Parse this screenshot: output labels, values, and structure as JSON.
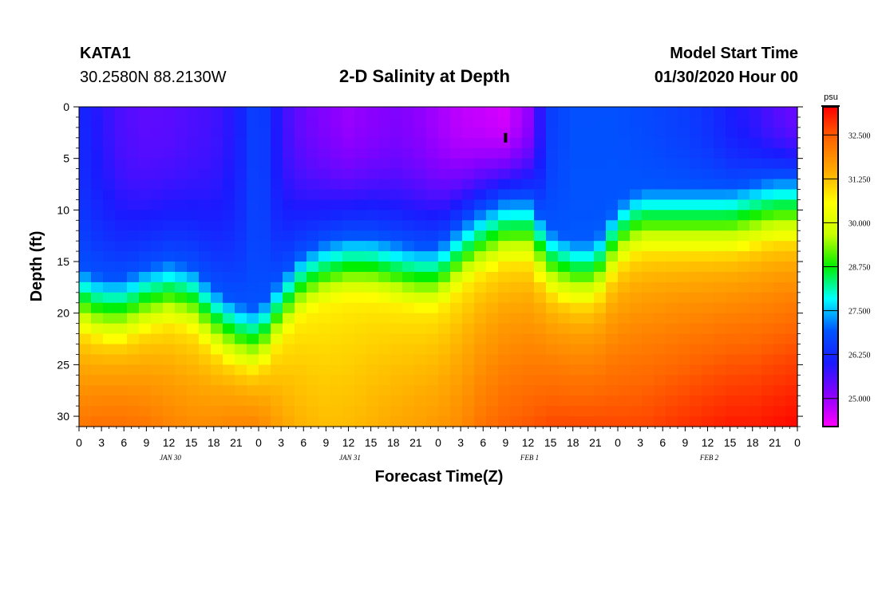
{
  "header": {
    "station_id": "KATA1",
    "station_coords": "30.2580N 88.2130W",
    "title": "2-D Salinity at Depth",
    "start_label": "Model Start Time",
    "start_value": "01/30/2020 Hour 00"
  },
  "chart_data": {
    "type": "heatmap",
    "title": "2-D Salinity at Depth",
    "xlabel": "Forecast Time(Z)",
    "ylabel": "Depth (ft)",
    "x_hours_range": [
      0,
      96
    ],
    "x_tick_step_hours": 3,
    "x_tick_labels": [
      "0",
      "3",
      "6",
      "9",
      "12",
      "15",
      "18",
      "21",
      "0",
      "3",
      "6",
      "9",
      "12",
      "15",
      "18",
      "21",
      "0",
      "3",
      "6",
      "9",
      "12",
      "15",
      "18",
      "21",
      "0",
      "3",
      "6",
      "9",
      "12",
      "15",
      "18",
      "21",
      "0"
    ],
    "day_labels": [
      {
        "text": "JAN 30",
        "hour": 12
      },
      {
        "text": "JAN 31",
        "hour": 36
      },
      {
        "text": "FEB 1",
        "hour": 60
      },
      {
        "text": "FEB 2",
        "hour": 84
      }
    ],
    "ylim": [
      0,
      31
    ],
    "y_ticks": [
      0,
      5,
      10,
      15,
      20,
      25,
      30
    ],
    "y_tick_labels": [
      "0",
      "5",
      "10",
      "15",
      "20",
      "25",
      "30"
    ],
    "colorbar": {
      "unit": "psu",
      "range": [
        24.2,
        33.3
      ],
      "tick_values": [
        25.0,
        26.25,
        27.5,
        28.75,
        30.0,
        31.25,
        32.5
      ],
      "tick_labels": [
        "25.000",
        "26.250",
        "27.500",
        "28.750",
        "30.000",
        "31.250",
        "32.500"
      ],
      "colors": [
        "#ff00ff",
        "#8a00ff",
        "#1a1aff",
        "#0055ff",
        "#00ffff",
        "#00ee00",
        "#c8ff00",
        "#ffff00",
        "#ffaa00",
        "#ff6600",
        "#ff0000"
      ]
    },
    "profile_hours": [
      0,
      3,
      6,
      9,
      12,
      15,
      18,
      21,
      24,
      27,
      30,
      33,
      36,
      39,
      42,
      45,
      48,
      51,
      54,
      57,
      60,
      63,
      66,
      69,
      72,
      75,
      78,
      81,
      84,
      87,
      90,
      93,
      96
    ],
    "surface_salinity": [
      26.3,
      25.9,
      25.6,
      25.5,
      25.5,
      25.6,
      25.7,
      26.0,
      26.8,
      25.8,
      25.4,
      25.2,
      25.0,
      25.1,
      25.2,
      25.1,
      24.9,
      24.7,
      24.6,
      24.5,
      25.0,
      26.5,
      26.8,
      26.8,
      26.8,
      26.7,
      26.6,
      26.5,
      26.3,
      26.0,
      25.8,
      25.5,
      25.3
    ],
    "bottom_salinity": [
      32.2,
      32.3,
      32.3,
      32.2,
      32.0,
      31.9,
      31.9,
      32.0,
      32.0,
      31.6,
      31.4,
      31.3,
      31.3,
      31.4,
      31.5,
      31.6,
      31.7,
      31.9,
      32.2,
      32.4,
      32.5,
      32.6,
      32.6,
      32.6,
      32.6,
      32.6,
      32.7,
      32.8,
      32.9,
      33.0,
      33.0,
      33.1,
      33.2
    ],
    "halocline_depth_ft": [
      18.5,
      19.5,
      19.5,
      18.5,
      18.0,
      18.5,
      20.5,
      22.0,
      22.5,
      19.5,
      17.0,
      16.0,
      15.5,
      15.5,
      16.0,
      16.5,
      16.5,
      14.5,
      13.0,
      12.0,
      12.0,
      15.0,
      16.0,
      16.0,
      12.5,
      11.0,
      11.0,
      11.0,
      11.0,
      11.0,
      10.5,
      10.0,
      10.0
    ],
    "halocline_mid_salinity": [
      28.3,
      28.3,
      28.3,
      28.3,
      28.4,
      28.4,
      28.4,
      28.4,
      28.3,
      28.3,
      28.3,
      28.3,
      28.4,
      28.4,
      28.4,
      28.4,
      28.4,
      28.4,
      28.5,
      28.5,
      28.5,
      28.6,
      28.6,
      28.6,
      28.6,
      28.6,
      28.6,
      28.6,
      28.6,
      28.6,
      28.6,
      28.6,
      28.6
    ],
    "marker": {
      "hour": 57,
      "depth_ft": 3
    }
  }
}
